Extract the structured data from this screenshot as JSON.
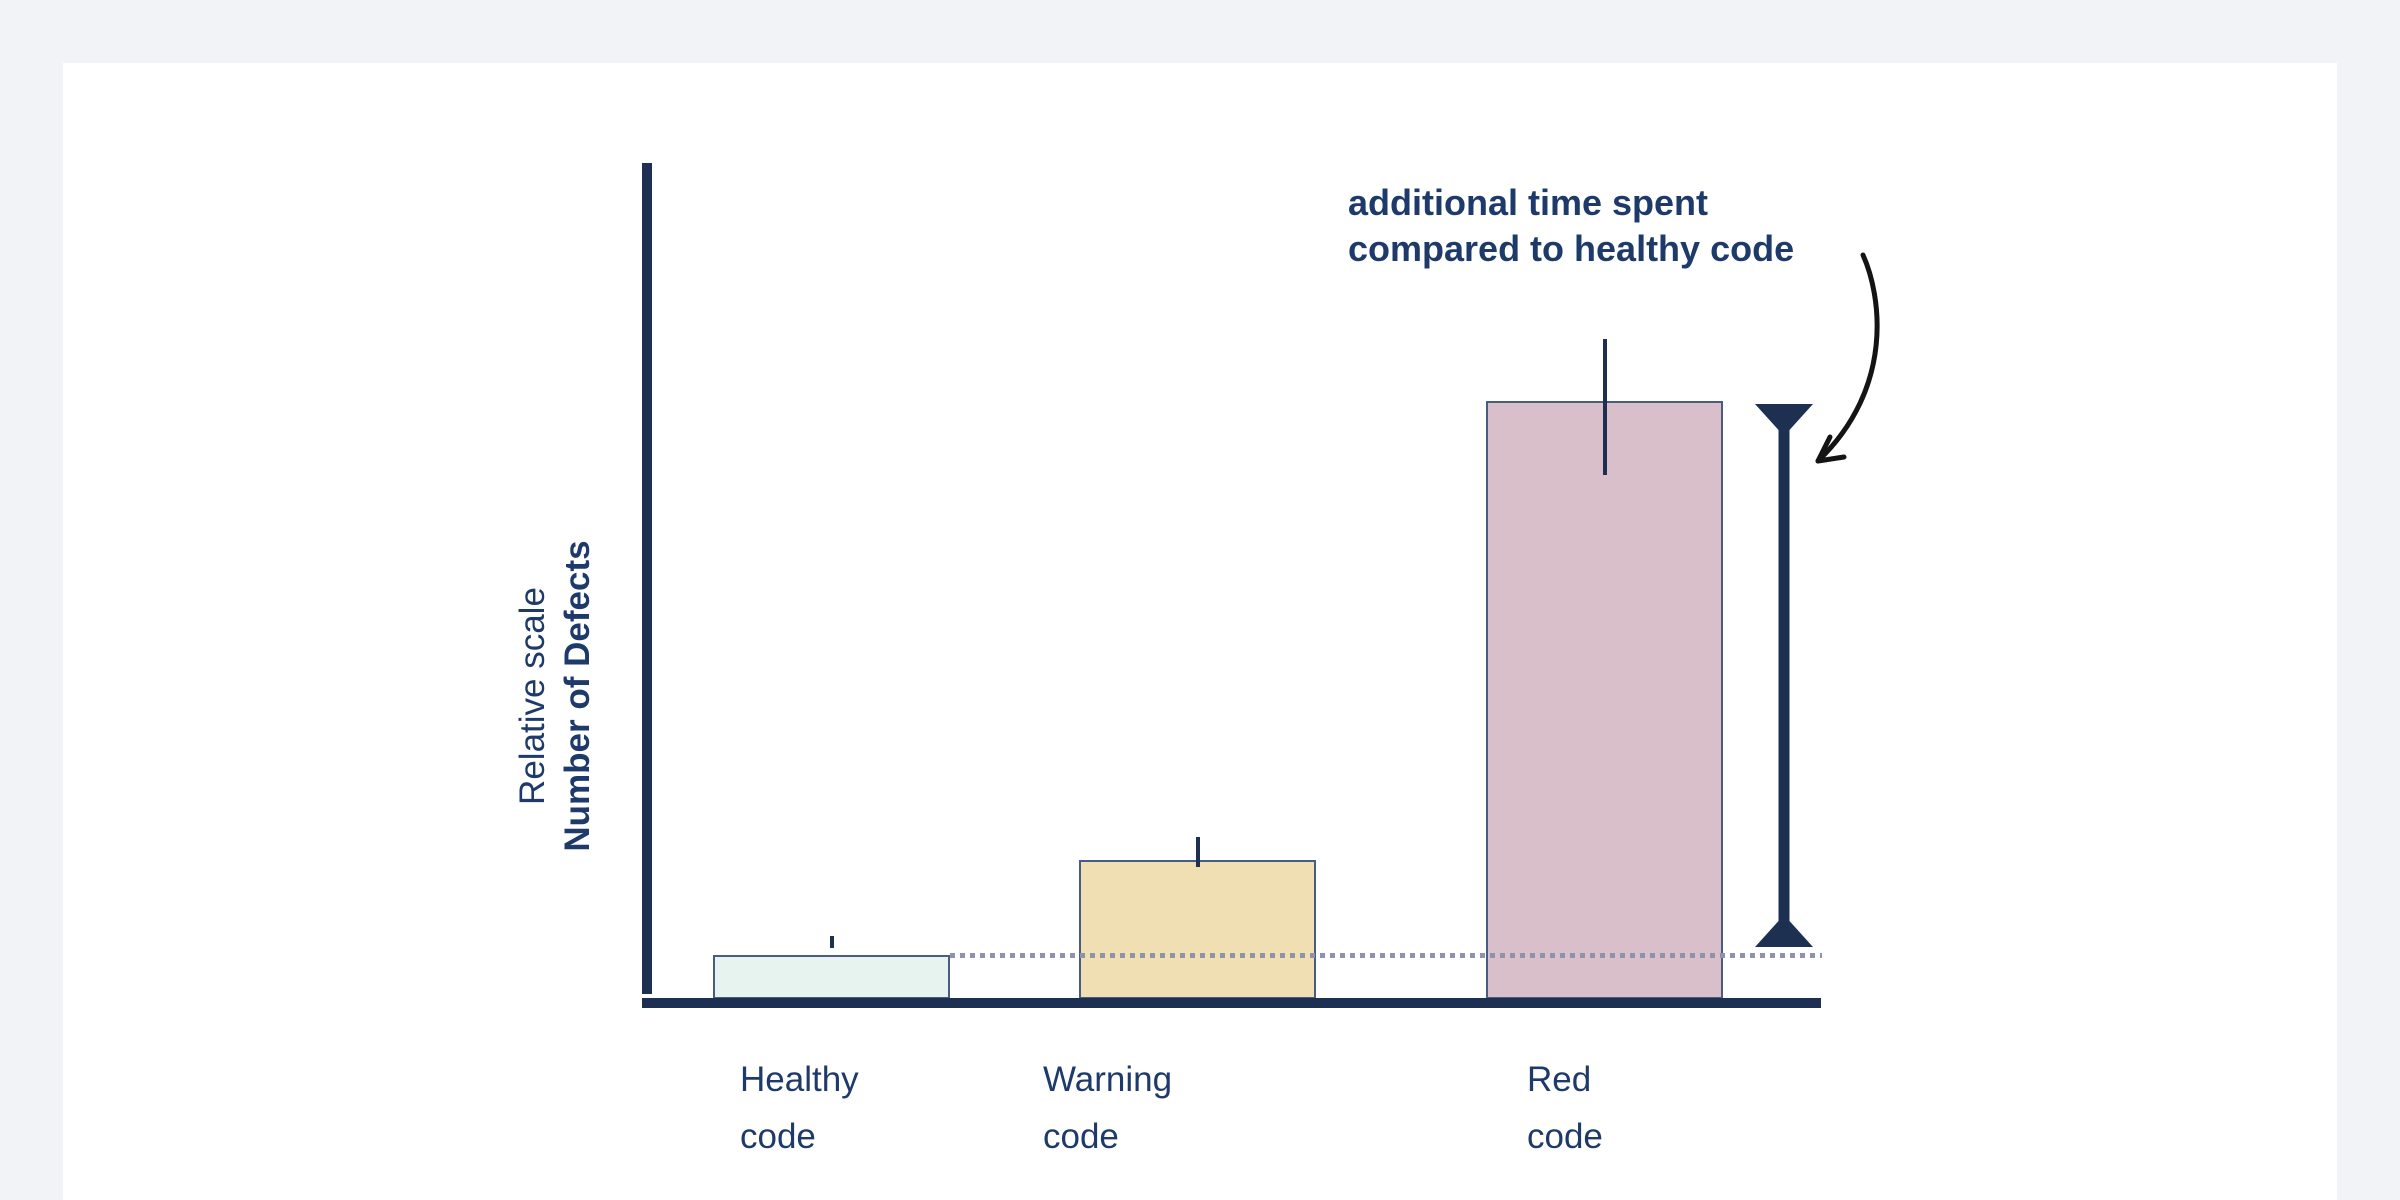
{
  "page": {
    "background_color": "#f1f3f7",
    "card_color": "#ffffff",
    "ink_color": "#1d3052",
    "text_color": "#1e3a6b"
  },
  "chart_data": {
    "type": "bar",
    "title": "",
    "categories": [
      "Healthy code",
      "Warning code",
      "Red code"
    ],
    "values": [
      1,
      3.16,
      13.6
    ],
    "value_unit": "relative (healthy code = 1); axis shows no numeric ticks",
    "ylabel": "Relative scale / Number of Defects",
    "xlabel": "",
    "ylim": [
      0,
      19
    ],
    "grid": false,
    "legend": false,
    "bar_colors": [
      "#e7f3ee",
      "#f1dfb4",
      "#d9bfc9"
    ],
    "bar_border_color": "#4a5c82",
    "error_ticks": [
      {
        "from": 1.16,
        "to": 1.43
      },
      {
        "from": 3.0,
        "to": 3.68
      },
      {
        "from": 11.9,
        "to": 15.0
      }
    ],
    "reference_line": {
      "value": 1,
      "style": "dotted",
      "color": "#8d94a9",
      "meaning": "level of healthy code"
    },
    "bracket": {
      "spans_from_value": 1,
      "spans_to_value": 13.6,
      "color": "#1d3052",
      "meaning": "gap between red code and healthy code"
    }
  },
  "annotation": {
    "line1": "additional time spent",
    "line2": "compared to healthy code"
  },
  "y_axis_label": {
    "line1": "Relative scale",
    "line2": "Number of Defects"
  },
  "x_labels": [
    {
      "line1": "Healthy",
      "line2": "code"
    },
    {
      "line1": "Warning",
      "line2": "code"
    },
    {
      "line1": "Red",
      "line2": "code"
    }
  ]
}
